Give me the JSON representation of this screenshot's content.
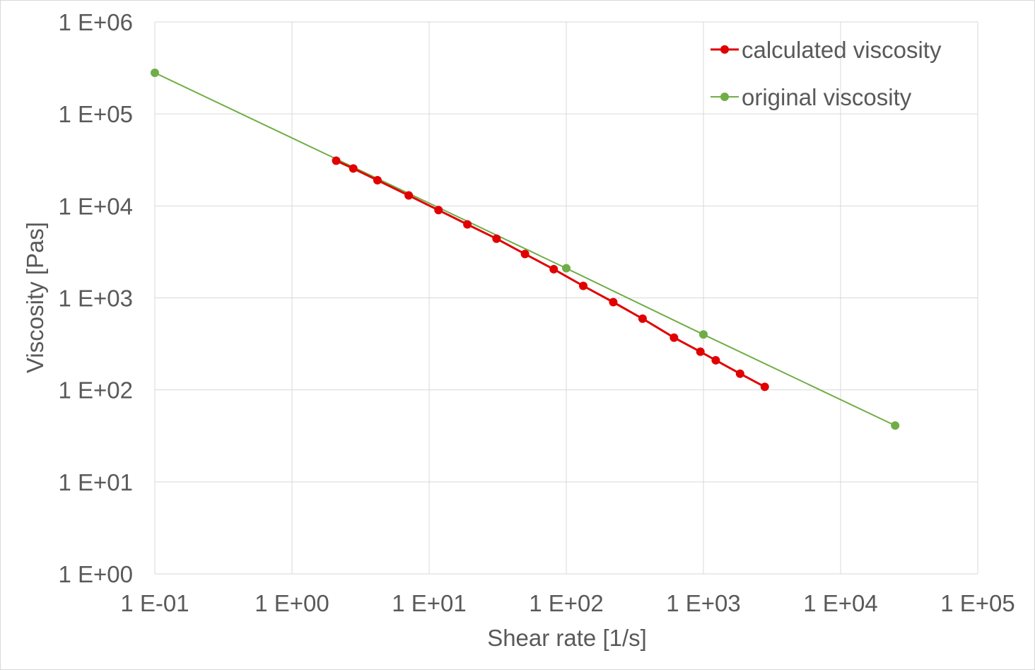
{
  "chart_data": {
    "type": "scatter",
    "title": "",
    "xlabel": "Shear rate   [1/s]",
    "ylabel": "Viscosity   [Pas]",
    "x_scale": "log",
    "y_scale": "log",
    "xlim": [
      0.1,
      100000
    ],
    "ylim": [
      1,
      1000000
    ],
    "x_ticks": [
      0.1,
      1,
      10,
      100,
      1000,
      10000,
      100000
    ],
    "y_ticks": [
      1,
      10,
      100,
      1000,
      10000,
      100000,
      1000000
    ],
    "x_tick_labels": [
      "1 E-01",
      "1 E+00",
      "1 E+01",
      "1 E+02",
      "1 E+03",
      "1 E+04",
      "1 E+05"
    ],
    "y_tick_labels": [
      "1 E+00",
      "1 E+01",
      "1 E+02",
      "1 E+03",
      "1 E+04",
      "1 E+05",
      "1 E+06"
    ],
    "grid": true,
    "legend_position": "top-right",
    "series": [
      {
        "name": "calculated viscosity",
        "color": "#e00000",
        "x": [
          2.1,
          2.8,
          4.2,
          7.1,
          11.7,
          19,
          31,
          50,
          81,
          133,
          220,
          360,
          610,
          950,
          1230,
          1850,
          2800
        ],
        "y": [
          31000,
          25500,
          19000,
          13000,
          9000,
          6300,
          4400,
          3000,
          2050,
          1350,
          900,
          595,
          370,
          260,
          210,
          150,
          108
        ]
      },
      {
        "name": "original viscosity",
        "color": "#70ad47",
        "x": [
          0.1,
          100,
          1000,
          25000
        ],
        "y": [
          280000,
          2100,
          400,
          41
        ]
      }
    ]
  }
}
